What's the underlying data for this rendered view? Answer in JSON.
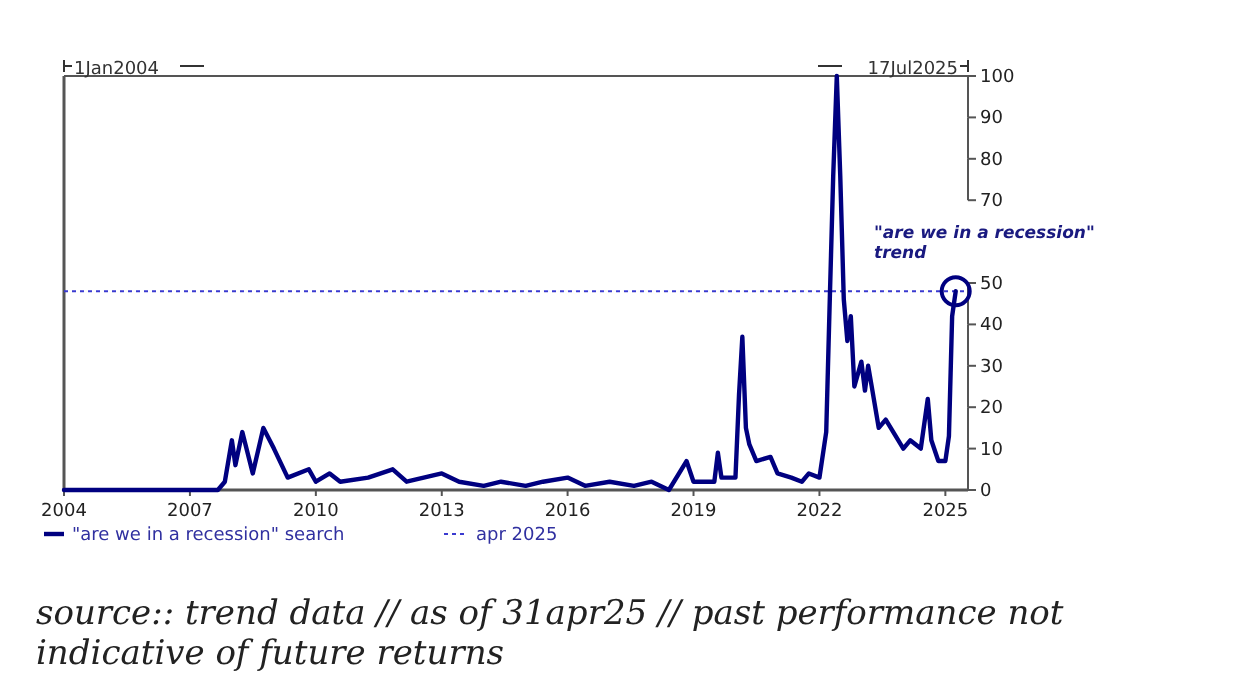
{
  "chart_data": {
    "type": "line",
    "legend": "bottom left",
    "grid": false,
    "marker": "none",
    "line_style": "solid",
    "xlim": [
      "2004-01-01",
      "2025-07-17"
    ],
    "xticks": [
      {
        "value": "2004-01-01",
        "label": "2004"
      },
      {
        "value": "2007-01-01",
        "label": "2007"
      },
      {
        "value": "2010-01-01",
        "label": "2010"
      },
      {
        "value": "2013-01-01",
        "label": "2013"
      },
      {
        "value": "2016-01-01",
        "label": "2016"
      },
      {
        "value": "2019-01-01",
        "label": "2019"
      },
      {
        "value": "2022-01-01",
        "label": "2022"
      },
      {
        "value": "2025-01-01",
        "label": "2025"
      }
    ],
    "ylim": [
      0,
      100
    ],
    "yticks": [
      0,
      10,
      20,
      30,
      40,
      50,
      70,
      80,
      90,
      100
    ],
    "x": [
      "2004-01",
      "2007-09",
      "2007-11",
      "2008-01",
      "2008-02",
      "2008-04",
      "2008-07",
      "2008-10",
      "2009-01",
      "2009-05",
      "2009-11",
      "2010-01",
      "2010-05",
      "2010-08",
      "2011-04",
      "2011-11",
      "2012-03",
      "2013-01",
      "2013-06",
      "2014-01",
      "2014-06",
      "2015-01",
      "2015-06",
      "2016-01",
      "2016-06",
      "2017-01",
      "2017-08",
      "2018-01",
      "2018-06",
      "2018-11",
      "2019-01",
      "2019-07",
      "2019-08",
      "2019-09",
      "2020-01",
      "2020-02",
      "2020-03",
      "2020-04",
      "2020-05",
      "2020-07",
      "2020-11",
      "2021-01",
      "2021-05",
      "2021-08",
      "2021-10",
      "2022-01",
      "2022-03",
      "2022-04",
      "2022-05",
      "2022-06",
      "2022-07",
      "2022-08",
      "2022-09",
      "2022-10",
      "2022-11",
      "2023-01",
      "2023-02",
      "2023-03",
      "2023-04",
      "2023-06",
      "2023-08",
      "2024-01",
      "2024-03",
      "2024-06",
      "2024-08",
      "2024-09",
      "2024-11",
      "2025-01",
      "2025-02",
      "2025-03",
      "2025-04"
    ],
    "series": [
      {
        "name": "\"are we in a recession\" search",
        "color": "#000080",
        "values": [
          0,
          0,
          2,
          12,
          6,
          14,
          4,
          15,
          10,
          3,
          5,
          2,
          4,
          2,
          3,
          5,
          2,
          4,
          2,
          1,
          2,
          1,
          2,
          3,
          1,
          2,
          1,
          2,
          0,
          7,
          2,
          2,
          9,
          3,
          3,
          23,
          37,
          15,
          11,
          7,
          8,
          4,
          3,
          2,
          4,
          3,
          14,
          46,
          76,
          100,
          76,
          46,
          36,
          42,
          25,
          31,
          24,
          30,
          25,
          15,
          17,
          10,
          12,
          10,
          22,
          12,
          7,
          7,
          13,
          42,
          48
        ]
      }
    ],
    "ref_lines": [
      {
        "axis": "y",
        "value": 48,
        "label": "apr 2025",
        "color": "#3a3ad0",
        "line_style": "dotted"
      }
    ],
    "annotations": [
      "1Jan2004",
      "17Jul2025",
      {
        "text": "\"are we in a recession\" trend",
        "x": "2025-04",
        "y": 48
      },
      "source:: trend data // as of 31apr25 // past performance not indicative of future returns"
    ]
  }
}
